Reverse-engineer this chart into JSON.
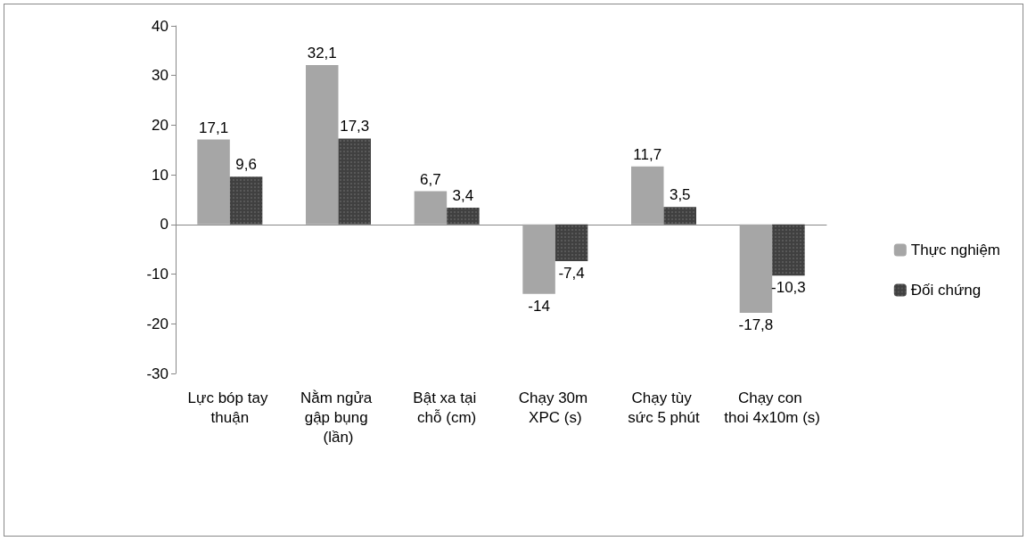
{
  "chart_data": {
    "type": "bar",
    "categories": [
      "Lực bóp tay thuận",
      "Nằm ngửa gập bụng (lần)",
      "Bật xa tại chỗ (cm)",
      "Chạy 30m XPC (s)",
      "Chạy tùy sức 5 phút",
      "Chạy con thoi 4x10m (s)"
    ],
    "series": [
      {
        "name": "Thực nghiệm",
        "color": "#a6a6a6",
        "values": [
          17.1,
          32.1,
          6.7,
          -14,
          11.7,
          -17.8
        ],
        "value_labels": [
          "17,1",
          "32,1",
          "6,7",
          "-14",
          "11,7",
          "-17,8"
        ]
      },
      {
        "name": "Đối chứng",
        "color": "#404040",
        "values": [
          9.6,
          17.3,
          3.4,
          -7.4,
          3.5,
          -10.3
        ],
        "value_labels": [
          "9,6",
          "17,3",
          "3,4",
          "-7,4",
          "3,5",
          "-10,3"
        ]
      }
    ],
    "ylim": [
      -30,
      40
    ],
    "yticks": [
      -30,
      -20,
      -10,
      0,
      10,
      20,
      30,
      40
    ],
    "legend": "right"
  }
}
